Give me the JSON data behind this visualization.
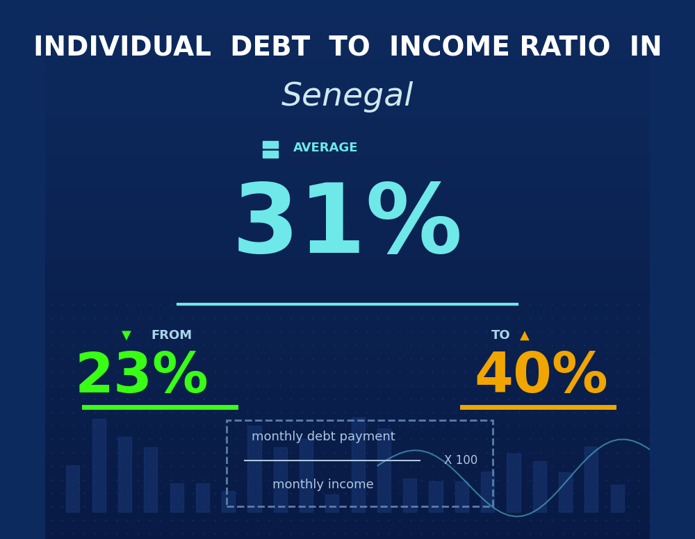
{
  "title_line1": "INDIVIDUAL  DEBT  TO  INCOME RATIO  IN",
  "title_line2": "Senegal",
  "avg_label": "AVERAGE",
  "avg_value": "31%",
  "from_label": "FROM",
  "from_value": "23%",
  "to_label": "TO",
  "to_value": "40%",
  "formula_top": "monthly debt payment",
  "formula_bottom": "monthly income",
  "formula_x100": "X 100",
  "bg_color_top": "#0d2a5e",
  "bg_color_bottom": "#081a44",
  "avg_color": "#6ee8e8",
  "from_color": "#39ff14",
  "to_color": "#f0a500",
  "title_color": "#ffffff",
  "subtitle_color": "#d0e8f0",
  "label_color": "#aad4e8",
  "formula_color": "#b0c8e0",
  "divider_color": "#6ee8e8",
  "from_underline_color": "#39ff14",
  "to_underline_color": "#f0a500",
  "arrow_icon_color_from": "#39ff14",
  "arrow_icon_color_to": "#f0a500",
  "avg_icon_color": "#6ee8e8"
}
